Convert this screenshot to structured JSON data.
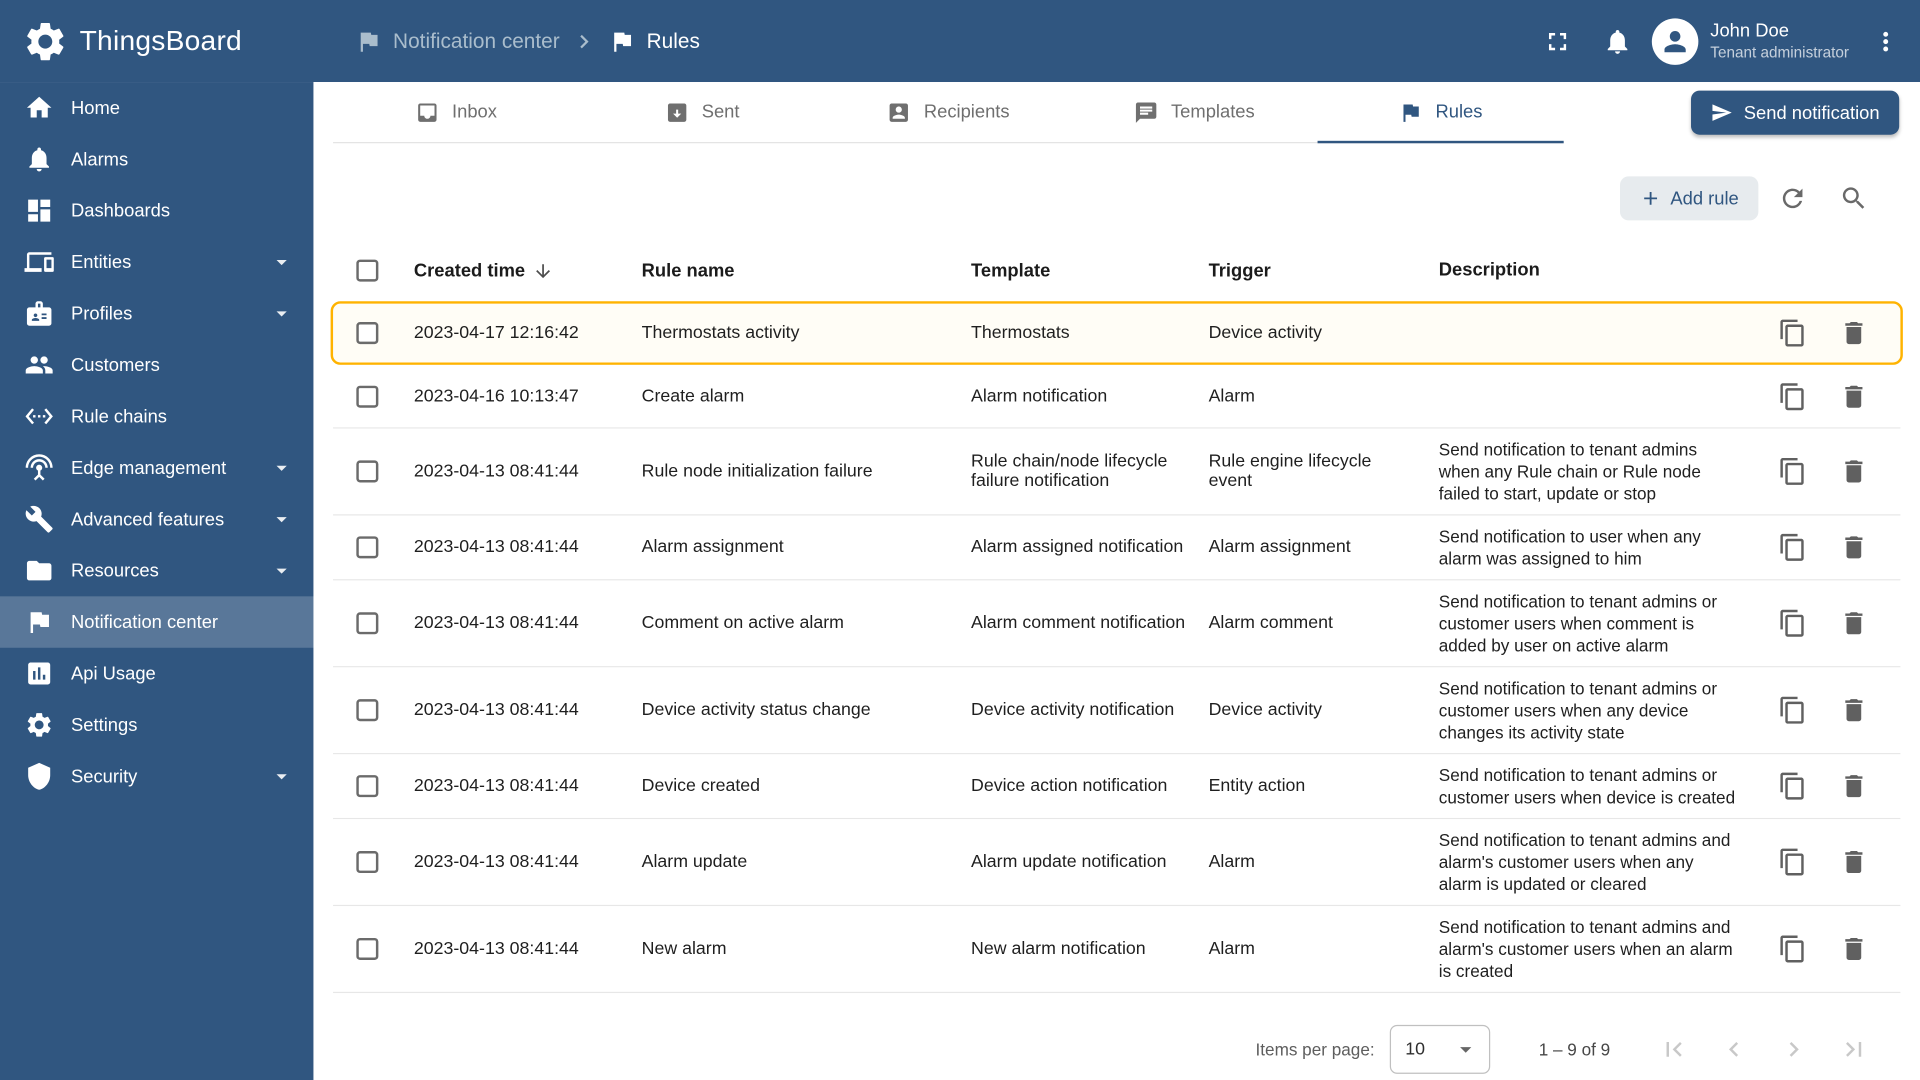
{
  "app": {
    "title": "ThingsBoard",
    "breadcrumb": {
      "parent": "Notification center",
      "current": "Rules"
    },
    "user": {
      "name": "John Doe",
      "role": "Tenant administrator"
    }
  },
  "sidebar": {
    "items": [
      {
        "label": "Home",
        "icon": "home-icon",
        "expandable": false,
        "active": false
      },
      {
        "label": "Alarms",
        "icon": "alarms-icon",
        "expandable": false,
        "active": false
      },
      {
        "label": "Dashboards",
        "icon": "dashboards-icon",
        "expandable": false,
        "active": false
      },
      {
        "label": "Entities",
        "icon": "entities-icon",
        "expandable": true,
        "active": false
      },
      {
        "label": "Profiles",
        "icon": "profiles-icon",
        "expandable": true,
        "active": false
      },
      {
        "label": "Customers",
        "icon": "customers-icon",
        "expandable": false,
        "active": false
      },
      {
        "label": "Rule chains",
        "icon": "rule-chains-icon",
        "expandable": false,
        "active": false
      },
      {
        "label": "Edge management",
        "icon": "edge-management-icon",
        "expandable": true,
        "active": false
      },
      {
        "label": "Advanced features",
        "icon": "advanced-features-icon",
        "expandable": true,
        "active": false
      },
      {
        "label": "Resources",
        "icon": "resources-icon",
        "expandable": true,
        "active": false
      },
      {
        "label": "Notification center",
        "icon": "notification-center-icon",
        "expandable": false,
        "active": true
      },
      {
        "label": "Api Usage",
        "icon": "api-usage-icon",
        "expandable": false,
        "active": false
      },
      {
        "label": "Settings",
        "icon": "settings-icon",
        "expandable": false,
        "active": false
      },
      {
        "label": "Security",
        "icon": "security-icon",
        "expandable": true,
        "active": false
      }
    ]
  },
  "tabs": {
    "items": [
      {
        "label": "Inbox",
        "icon": "inbox-icon",
        "active": false
      },
      {
        "label": "Sent",
        "icon": "sent-icon",
        "active": false
      },
      {
        "label": "Recipients",
        "icon": "recipients-icon",
        "active": false
      },
      {
        "label": "Templates",
        "icon": "templates-icon",
        "active": false
      },
      {
        "label": "Rules",
        "icon": "rules-icon",
        "active": true
      }
    ],
    "send_button": "Send notification"
  },
  "toolbar": {
    "add_rule": "Add rule"
  },
  "table": {
    "columns": [
      "Created time",
      "Rule name",
      "Template",
      "Trigger",
      "Description"
    ],
    "rows": [
      {
        "created": "2023-04-17 12:16:42",
        "name": "Thermostats activity",
        "template": "Thermostats",
        "trigger": "Device activity",
        "description": "",
        "highlighted": true
      },
      {
        "created": "2023-04-16 10:13:47",
        "name": "Create alarm",
        "template": "Alarm notification",
        "trigger": "Alarm",
        "description": "",
        "highlighted": false
      },
      {
        "created": "2023-04-13 08:41:44",
        "name": "Rule node initialization failure",
        "template": "Rule chain/node lifecycle failure notification",
        "trigger": "Rule engine lifecycle event",
        "description": "Send notification to tenant admins when any Rule chain or Rule node failed to start, update or stop",
        "highlighted": false
      },
      {
        "created": "2023-04-13 08:41:44",
        "name": "Alarm assignment",
        "template": "Alarm assigned notification",
        "trigger": "Alarm assignment",
        "description": "Send notification to user when any alarm was assigned to him",
        "highlighted": false
      },
      {
        "created": "2023-04-13 08:41:44",
        "name": "Comment on active alarm",
        "template": "Alarm comment notification",
        "trigger": "Alarm comment",
        "description": "Send notification to tenant admins or customer users when comment is added by user on active alarm",
        "highlighted": false
      },
      {
        "created": "2023-04-13 08:41:44",
        "name": "Device activity status change",
        "template": "Device activity notification",
        "trigger": "Device activity",
        "description": "Send notification to tenant admins or customer users when any device changes its activity state",
        "highlighted": false
      },
      {
        "created": "2023-04-13 08:41:44",
        "name": "Device created",
        "template": "Device action notification",
        "trigger": "Entity action",
        "description": "Send notification to tenant admins or customer users when device is created",
        "highlighted": false
      },
      {
        "created": "2023-04-13 08:41:44",
        "name": "Alarm update",
        "template": "Alarm update notification",
        "trigger": "Alarm",
        "description": "Send notification to tenant admins and alarm's customer users when any alarm is updated or cleared",
        "highlighted": false
      },
      {
        "created": "2023-04-13 08:41:44",
        "name": "New alarm",
        "template": "New alarm notification",
        "trigger": "Alarm",
        "description": "Send notification to tenant admins and alarm's customer users when an alarm is created",
        "highlighted": false
      }
    ]
  },
  "pagination": {
    "items_per_page_label": "Items per page:",
    "items_per_page_value": "10",
    "range": "1 – 9 of 9"
  },
  "colors": {
    "primary": "#305680",
    "highlight_border": "#ffb300"
  }
}
